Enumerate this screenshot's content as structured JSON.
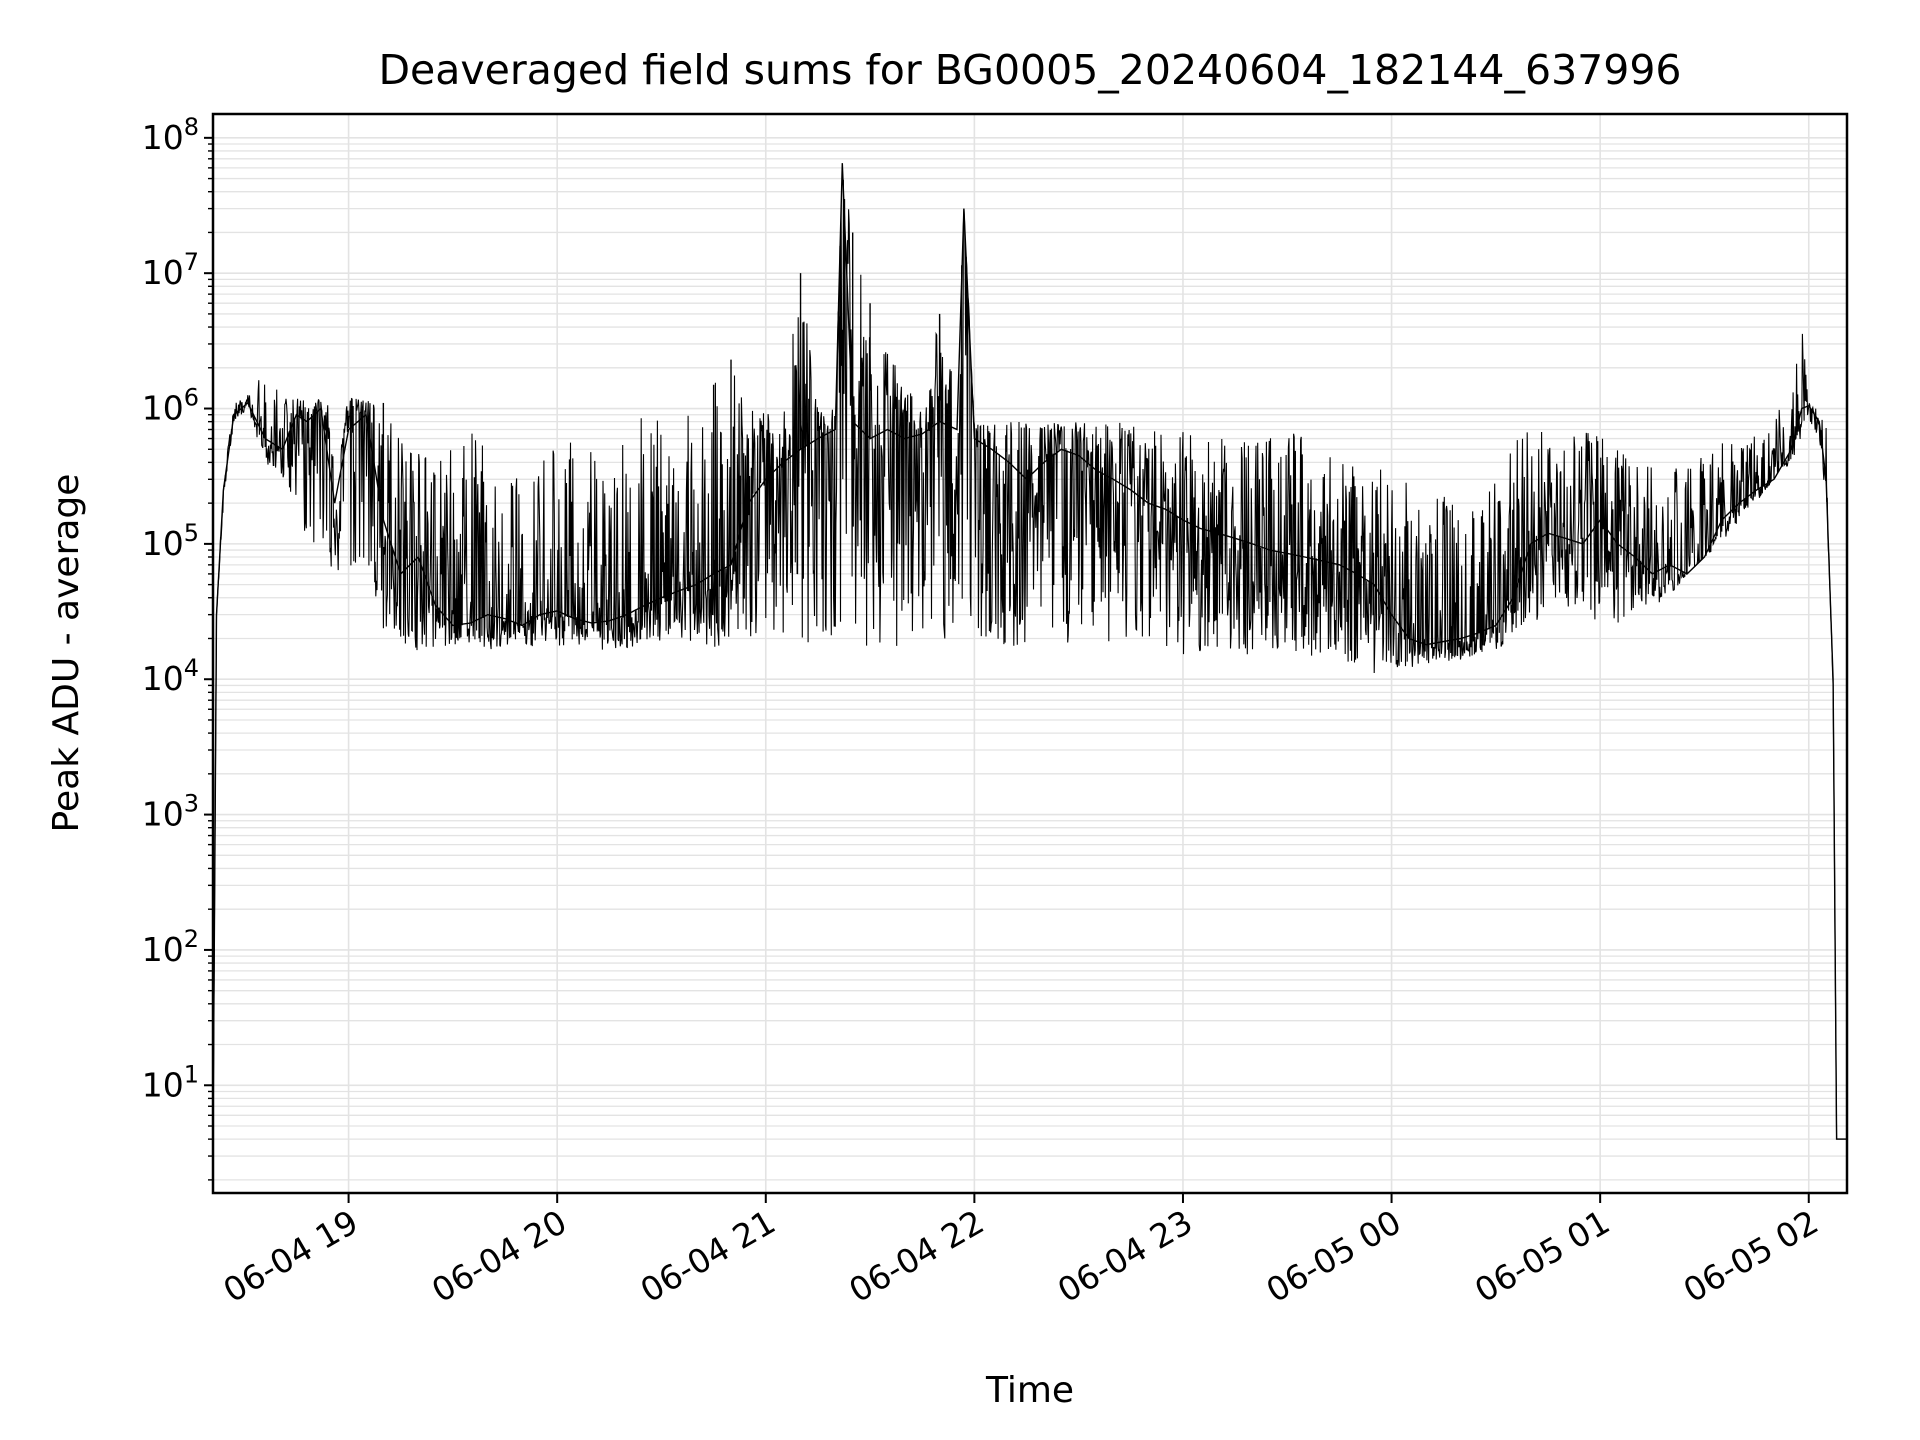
{
  "chart_data": {
    "type": "line",
    "title": "Deaveraged field sums for BG0005_20240604_182144_637996",
    "xlabel": "Time",
    "ylabel": "Peak ADU - average",
    "yscale": "log",
    "ylim": [
      1.6,
      150000000
    ],
    "xlim": [
      "06-04 18:21",
      "06-05 02:11"
    ],
    "grid": true,
    "line_color": "#000000",
    "grid_color": "#e3e3e3",
    "x_ticks": [
      {
        "label": "06-04 19",
        "value": "06-04 19:00"
      },
      {
        "label": "06-04 20",
        "value": "06-04 20:00"
      },
      {
        "label": "06-04 21",
        "value": "06-04 21:00"
      },
      {
        "label": "06-04 22",
        "value": "06-04 22:00"
      },
      {
        "label": "06-04 23",
        "value": "06-04 23:00"
      },
      {
        "label": "06-05 00",
        "value": "06-05 00:00"
      },
      {
        "label": "06-05 01",
        "value": "06-05 01:00"
      },
      {
        "label": "06-05 02",
        "value": "06-05 02:00"
      }
    ],
    "y_ticks": [
      {
        "base": "10",
        "exp": "1",
        "value": 10
      },
      {
        "base": "10",
        "exp": "2",
        "value": 100
      },
      {
        "base": "10",
        "exp": "3",
        "value": 1000
      },
      {
        "base": "10",
        "exp": "4",
        "value": 10000
      },
      {
        "base": "10",
        "exp": "5",
        "value": 100000
      },
      {
        "base": "10",
        "exp": "6",
        "value": 1000000
      },
      {
        "base": "10",
        "exp": "7",
        "value": 10000000
      },
      {
        "base": "10",
        "exp": "8",
        "value": 100000000
      }
    ],
    "series": [
      {
        "x": [
          "06-04 18:21",
          "06-04 18:22",
          "06-04 18:24",
          "06-04 18:27",
          "06-04 18:31",
          "06-04 18:36",
          "06-04 18:41",
          "06-04 18:45",
          "06-04 18:48",
          "06-04 18:52",
          "06-04 18:56",
          "06-04 19:00",
          "06-04 19:05",
          "06-04 19:10",
          "06-04 19:15",
          "06-04 19:20",
          "06-04 19:25",
          "06-04 19:30",
          "06-04 19:35",
          "06-04 19:40",
          "06-04 19:45",
          "06-04 19:50",
          "06-04 19:55",
          "06-04 20:00",
          "06-04 20:05",
          "06-04 20:10",
          "06-04 20:15",
          "06-04 20:20",
          "06-04 20:25",
          "06-04 20:30",
          "06-04 20:35",
          "06-04 20:40",
          "06-04 20:45",
          "06-04 20:50",
          "06-04 20:55",
          "06-04 21:00",
          "06-04 21:05",
          "06-04 21:10",
          "06-04 21:15",
          "06-04 21:20",
          "06-04 21:22",
          "06-04 21:25",
          "06-04 21:30",
          "06-04 21:35",
          "06-04 21:40",
          "06-04 21:45",
          "06-04 21:50",
          "06-04 21:55",
          "06-04 21:57",
          "06-04 22:00",
          "06-04 22:05",
          "06-04 22:10",
          "06-04 22:15",
          "06-04 22:20",
          "06-04 22:25",
          "06-04 22:30",
          "06-04 22:35",
          "06-04 22:40",
          "06-04 22:45",
          "06-04 22:50",
          "06-04 22:55",
          "06-04 23:00",
          "06-04 23:05",
          "06-04 23:10",
          "06-04 23:15",
          "06-04 23:20",
          "06-04 23:25",
          "06-04 23:30",
          "06-04 23:35",
          "06-04 23:40",
          "06-04 23:45",
          "06-04 23:50",
          "06-04 23:55",
          "06-05 00:00",
          "06-05 00:05",
          "06-05 00:10",
          "06-05 00:15",
          "06-05 00:20",
          "06-05 00:25",
          "06-05 00:30",
          "06-05 00:35",
          "06-05 00:40",
          "06-05 00:45",
          "06-05 00:50",
          "06-05 00:55",
          "06-05 01:00",
          "06-05 01:05",
          "06-05 01:10",
          "06-05 01:15",
          "06-05 01:20",
          "06-05 01:25",
          "06-05 01:30",
          "06-05 01:35",
          "06-05 01:40",
          "06-05 01:45",
          "06-05 01:50",
          "06-05 01:55",
          "06-05 01:58",
          "06-05 02:00",
          "06-05 02:03",
          "06-05 02:05",
          "06-05 02:07",
          "06-05 02:08",
          "06-05 02:09",
          "06-05 02:10",
          "06-05 02:11"
        ],
        "y": [
          4,
          30000,
          250000,
          900000,
          1100000,
          600000,
          500000,
          900000,
          800000,
          1000000,
          200000,
          700000,
          900000,
          150000,
          60000,
          80000,
          35000,
          25000,
          26000,
          30000,
          28000,
          25000,
          30000,
          32000,
          28000,
          26000,
          27000,
          30000,
          35000,
          40000,
          45000,
          50000,
          60000,
          70000,
          200000,
          300000,
          400000,
          500000,
          600000,
          700000,
          65000000,
          800000,
          600000,
          700000,
          600000,
          650000,
          800000,
          700000,
          30000000,
          600000,
          500000,
          400000,
          300000,
          400000,
          500000,
          450000,
          350000,
          300000,
          250000,
          200000,
          180000,
          150000,
          130000,
          120000,
          110000,
          100000,
          90000,
          85000,
          80000,
          75000,
          70000,
          60000,
          50000,
          30000,
          20000,
          18000,
          19000,
          20000,
          22000,
          25000,
          40000,
          100000,
          120000,
          110000,
          100000,
          150000,
          100000,
          80000,
          60000,
          70000,
          60000,
          80000,
          150000,
          200000,
          250000,
          300000,
          500000,
          1000000,
          1050000,
          800000,
          300000,
          10000,
          4,
          4,
          4,
          4
        ],
        "hi": [
          4,
          30000,
          300000,
          1200000,
          1300000,
          2000000,
          1200000,
          1300000,
          1300000,
          1200000,
          1000000,
          1200000,
          1200000,
          1100000,
          700000,
          600000,
          500000,
          500000,
          700000,
          600000,
          400000,
          300000,
          500000,
          900000,
          500000,
          500000,
          300000,
          900000,
          900000,
          900000,
          900000,
          900000,
          1500000,
          2300000,
          1000000,
          1000000,
          1000000,
          10000000,
          1000000,
          1000000,
          65000000,
          20000000,
          6000000,
          3000000,
          1500000,
          1000000,
          5000000,
          2000000,
          30000000,
          800000,
          800000,
          800000,
          800000,
          800000,
          800000,
          800000,
          800000,
          800000,
          800000,
          700000,
          700000,
          700000,
          700000,
          700000,
          700000,
          700000,
          700000,
          700000,
          600000,
          500000,
          400000,
          400000,
          400000,
          300000,
          300000,
          250000,
          250000,
          200000,
          200000,
          300000,
          600000,
          700000,
          700000,
          700000,
          700000,
          700000,
          500000,
          400000,
          400000,
          400000,
          400000,
          500000,
          600000,
          700000,
          800000,
          900000,
          1200000,
          4000000,
          1100000,
          1000000,
          800000,
          10000,
          4,
          4,
          4,
          4
        ],
        "lo": [
          4,
          30000,
          200000,
          800000,
          1000000,
          400000,
          300000,
          200000,
          100000,
          80000,
          60000,
          50000,
          40000,
          20000,
          18000,
          16000,
          17000,
          18000,
          17000,
          16000,
          18000,
          17000,
          18000,
          17000,
          18000,
          17000,
          16000,
          17000,
          18000,
          17000,
          19000,
          18000,
          17000,
          16000,
          17000,
          18000,
          17000,
          16000,
          17000,
          18000,
          17000,
          16000,
          17000,
          18000,
          17000,
          16000,
          17000,
          18000,
          17000,
          16000,
          17000,
          18000,
          16000,
          17000,
          18000,
          17000,
          16000,
          17000,
          18000,
          15000,
          16000,
          15000,
          16000,
          17000,
          16000,
          15000,
          16000,
          17000,
          15000,
          14000,
          13000,
          12000,
          11000,
          11000,
          12000,
          13000,
          13000,
          14000,
          15000,
          16000,
          20000,
          25000,
          30000,
          35000,
          30000,
          25000,
          25000,
          30000,
          35000,
          40000,
          60000,
          80000,
          100000,
          150000,
          200000,
          300000,
          400000,
          600000,
          800000,
          600000,
          200000,
          8000,
          4,
          4,
          4,
          4
        ]
      }
    ]
  }
}
